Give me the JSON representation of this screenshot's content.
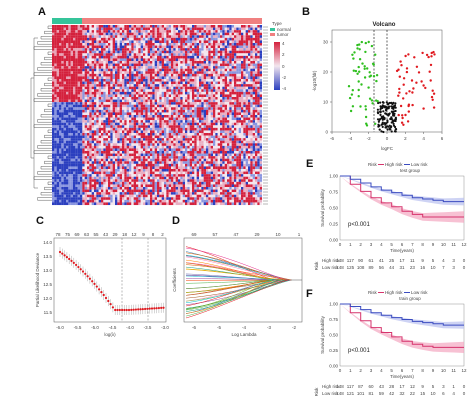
{
  "panels": {
    "A": "A",
    "B": "B",
    "C": "C",
    "D": "D",
    "E": "E",
    "F": "F"
  },
  "heatmap": {
    "legend_title": "Type",
    "legend_items": [
      {
        "label": "normal",
        "color": "#35c49a"
      },
      {
        "label": "tumor",
        "color": "#f08080"
      }
    ],
    "scale_ticks": [
      "4",
      "2",
      "0",
      "-2",
      "-4"
    ],
    "colors": {
      "high": "#d4213d",
      "mid": "#f3e6ee",
      "low": "#2b3fbf",
      "normal_bar": "#35c49a",
      "tumor_bar": "#f08080"
    }
  },
  "volcano": {
    "title": "Volcano",
    "xlabel": "logFC",
    "ylabel": "-log10(fdr)",
    "xticks": [
      "-6",
      "-4",
      "-2",
      "0",
      "2",
      "4",
      "6"
    ],
    "yticks": [
      "0",
      "10",
      "20",
      "30"
    ]
  },
  "lasso_c": {
    "xlabel": "log(λ)",
    "ylabel": "Partial Likelihood Deviance",
    "top_ticks": [
      "78",
      "75",
      "69",
      "63",
      "55",
      "43",
      "29",
      "18",
      "12",
      "9",
      "8",
      "2"
    ],
    "yticks": [
      "14.0",
      "13.5",
      "13.0",
      "12.5",
      "12.0",
      "11.5"
    ],
    "xticks": [
      "-6.0",
      "-5.5",
      "-5.0",
      "-4.5",
      "-4.0",
      "-3.5",
      "-3.0"
    ]
  },
  "lasso_d": {
    "xlabel": "Log Lambda",
    "ylabel": "Coefficients",
    "top_ticks": [
      "69",
      "57",
      "47",
      "29",
      "10",
      "1"
    ],
    "xticks": [
      "-6",
      "-5",
      "-4",
      "-3",
      "-2"
    ]
  },
  "survival_e": {
    "title": "test group",
    "pvalue": "p<0.001",
    "legend": [
      "Risk",
      "High risk",
      "Low risk"
    ],
    "ylabel": "Survival probability",
    "xlabel": "Time(years)",
    "xticks": [
      "0",
      "1",
      "2",
      "3",
      "4",
      "5",
      "6",
      "7",
      "8",
      "9",
      "10",
      "11",
      "12"
    ],
    "yticks": [
      "1.00",
      "0.75",
      "0.50",
      "0.25",
      "0.00"
    ],
    "risk_label": "Risk",
    "risk_rows": [
      {
        "name": "High risk",
        "values": [
          "148",
          "117",
          "90",
          "61",
          "41",
          "25",
          "17",
          "11",
          "9",
          "5",
          "4",
          "3",
          "0"
        ],
        "color": "#d6336c"
      },
      {
        "name": "Low risk",
        "values": [
          "148",
          "125",
          "108",
          "89",
          "56",
          "44",
          "31",
          "23",
          "16",
          "10",
          "7",
          "3",
          "0"
        ],
        "color": "#3b4cc0"
      }
    ],
    "high_curve": [
      1.0,
      0.87,
      0.76,
      0.66,
      0.58,
      0.52,
      0.45,
      0.4,
      0.36,
      0.36,
      0.36,
      0.36,
      0.36
    ],
    "low_curve": [
      1.0,
      0.95,
      0.89,
      0.83,
      0.78,
      0.74,
      0.7,
      0.66,
      0.64,
      0.62,
      0.6,
      0.6,
      0.6
    ]
  },
  "survival_f": {
    "title": "train group",
    "pvalue": "p<0.001",
    "legend": [
      "Risk",
      "High risk",
      "Low risk"
    ],
    "ylabel": "Survival probability",
    "xlabel": "Time(years)",
    "xticks": [
      "0",
      "1",
      "2",
      "3",
      "4",
      "5",
      "6",
      "7",
      "8",
      "9",
      "10",
      "11",
      "12"
    ],
    "yticks": [
      "1.00",
      "0.75",
      "0.50",
      "0.25",
      "0.00"
    ],
    "risk_label": "Risk",
    "risk_rows": [
      {
        "name": "High risk",
        "values": [
          "148",
          "117",
          "87",
          "60",
          "43",
          "28",
          "17",
          "12",
          "9",
          "5",
          "3",
          "1",
          "0"
        ],
        "color": "#d6336c"
      },
      {
        "name": "Low risk",
        "values": [
          "148",
          "121",
          "101",
          "81",
          "59",
          "42",
          "32",
          "22",
          "15",
          "10",
          "6",
          "4",
          "0"
        ],
        "color": "#3b4cc0"
      }
    ],
    "high_curve": [
      1.0,
      0.86,
      0.73,
      0.62,
      0.54,
      0.47,
      0.4,
      0.35,
      0.32,
      0.3,
      0.3,
      0.3,
      0.3
    ],
    "low_curve": [
      1.0,
      0.96,
      0.91,
      0.86,
      0.82,
      0.78,
      0.75,
      0.72,
      0.7,
      0.68,
      0.66,
      0.66,
      0.66
    ]
  }
}
